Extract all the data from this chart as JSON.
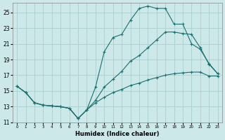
{
  "xlabel": "Humidex (Indice chaleur)",
  "background_color": "#cce8e8",
  "grid_color": "#aacfcf",
  "line_color": "#1a7070",
  "xlim": [
    -0.5,
    23.5
  ],
  "ylim": [
    11,
    26.2
  ],
  "yticks": [
    11,
    13,
    15,
    17,
    19,
    21,
    23,
    25
  ],
  "xticks": [
    0,
    1,
    2,
    3,
    4,
    5,
    6,
    7,
    8,
    9,
    10,
    11,
    12,
    13,
    14,
    15,
    16,
    17,
    18,
    19,
    20,
    21,
    22,
    23
  ],
  "line1_x": [
    0,
    1,
    2,
    3,
    4,
    5,
    6,
    7,
    8,
    9,
    10,
    11,
    12,
    13,
    14,
    15,
    16,
    17,
    18,
    19,
    20,
    21,
    22,
    23
  ],
  "line1_y": [
    15.6,
    14.8,
    13.5,
    13.2,
    13.1,
    13.0,
    12.8,
    11.5,
    12.6,
    15.5,
    20.0,
    21.8,
    22.2,
    24.0,
    25.5,
    25.8,
    25.5,
    25.5,
    23.5,
    23.5,
    21.0,
    20.3,
    18.5,
    17.2
  ],
  "line2_x": [
    0,
    1,
    2,
    3,
    4,
    5,
    6,
    7,
    8,
    9,
    10,
    11,
    12,
    13,
    14,
    15,
    16,
    17,
    18,
    19,
    20,
    21,
    22,
    23
  ],
  "line2_y": [
    15.6,
    14.8,
    13.5,
    13.2,
    13.1,
    13.0,
    12.8,
    11.5,
    12.6,
    13.8,
    15.5,
    16.5,
    17.5,
    18.8,
    19.5,
    20.5,
    21.5,
    22.5,
    22.5,
    22.3,
    22.2,
    20.5,
    18.4,
    17.2
  ],
  "line3_x": [
    0,
    1,
    2,
    3,
    4,
    5,
    6,
    7,
    8,
    9,
    10,
    11,
    12,
    13,
    14,
    15,
    16,
    17,
    18,
    19,
    20,
    21,
    22,
    23
  ],
  "line3_y": [
    15.6,
    14.8,
    13.5,
    13.2,
    13.1,
    13.0,
    12.8,
    11.5,
    12.6,
    13.5,
    14.2,
    14.8,
    15.2,
    15.7,
    16.0,
    16.4,
    16.7,
    17.0,
    17.2,
    17.3,
    17.4,
    17.4,
    16.9,
    16.9
  ]
}
